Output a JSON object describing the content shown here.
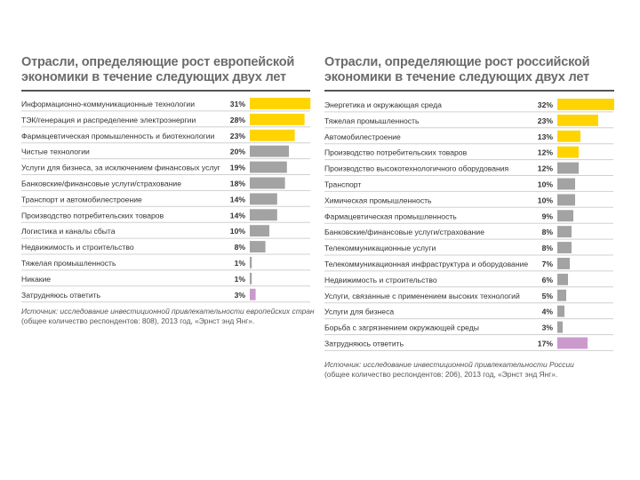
{
  "colors": {
    "top": "#ffd400",
    "normal": "#a3a3a3",
    "undecided": "#cc99cc",
    "row_line": "#d0d0d0"
  },
  "chart_data": [
    {
      "type": "bar",
      "orientation": "horizontal",
      "title": "Отрасли, определяющие рост европейской экономики в течение следующих двух лет",
      "title_line1": "Отрасли, определяющие рост европейской",
      "title_line2": "экономики в течение следующих двух лет",
      "unit": "%",
      "categories": [
        "Информационно-коммуникационные технологии",
        "ТЭК/генерация и распределение электроэнергии",
        "Фармацевтическая промышленность и биотехнологии",
        "Чистые технологии",
        "Услуги для бизнеса, за исключением финансовых услуг",
        "Банковские/финансовые услуги/страхование",
        "Транспорт и автомобилестроение",
        "Производство потребительских товаров",
        "Логистика и каналы сбыта",
        "Недвижимость и строительство",
        "Тяжелая промышленность",
        "Никакие",
        "Затрудняюсь ответить"
      ],
      "values": [
        31,
        28,
        23,
        20,
        19,
        18,
        14,
        14,
        10,
        8,
        1,
        1,
        3
      ],
      "value_labels": [
        "31%",
        "28%",
        "23%",
        "20%",
        "19%",
        "18%",
        "14%",
        "14%",
        "10%",
        "8%",
        "1%",
        "1%",
        "3%"
      ],
      "highlight": [
        "top",
        "top",
        "top",
        "normal",
        "normal",
        "normal",
        "normal",
        "normal",
        "normal",
        "normal",
        "normal",
        "normal",
        "undecided"
      ],
      "source_italic": "Источник: исследование инвестиционной привлекательности европейских стран",
      "source_plain": "(общее количество респондентов: 808), 2013 год, «Эрнст энд Янг»."
    },
    {
      "type": "bar",
      "orientation": "horizontal",
      "title": "Отрасли, определяющие рост российской экономики в течение следующих двух лет",
      "title_line1": "Отрасли, определяющие рост российской",
      "title_line2": "экономики в течение следующих двух лет",
      "unit": "%",
      "categories": [
        "Энергетика и окружающая среда",
        "Тяжелая промышленность",
        "Автомобилестроение",
        "Производство потребительских товаров",
        "Производство высокотехнологичного оборудования",
        "Транспорт",
        "Химическая промышленность",
        "Фармацевтическая промышленность",
        "Банковские/финансовые услуги/страхование",
        "Телекоммуникационные услуги",
        "Телекоммуникационная инфраструктура и оборудование",
        "Недвижимость и строительство",
        "Услуги, связанные с применением высоких технологий",
        "Услуги для бизнеса",
        "Борьба с загрязнением окружающей среды",
        "Затрудняюсь ответить"
      ],
      "values": [
        32,
        23,
        13,
        12,
        12,
        10,
        10,
        9,
        8,
        8,
        7,
        6,
        5,
        4,
        3,
        17
      ],
      "value_labels": [
        "32%",
        "23%",
        "13%",
        "12%",
        "12%",
        "10%",
        "10%",
        "9%",
        "8%",
        "8%",
        "7%",
        "6%",
        "5%",
        "4%",
        "3%",
        "17%"
      ],
      "highlight": [
        "top",
        "top",
        "top",
        "top",
        "normal",
        "normal",
        "normal",
        "normal",
        "normal",
        "normal",
        "normal",
        "normal",
        "normal",
        "normal",
        "normal",
        "undecided"
      ],
      "source_italic": "Источник: исследование инвестиционной привлекательности России",
      "source_plain": "(общее количество респондентов: 206), 2013 год, «Эрнст энд Янг»."
    }
  ]
}
